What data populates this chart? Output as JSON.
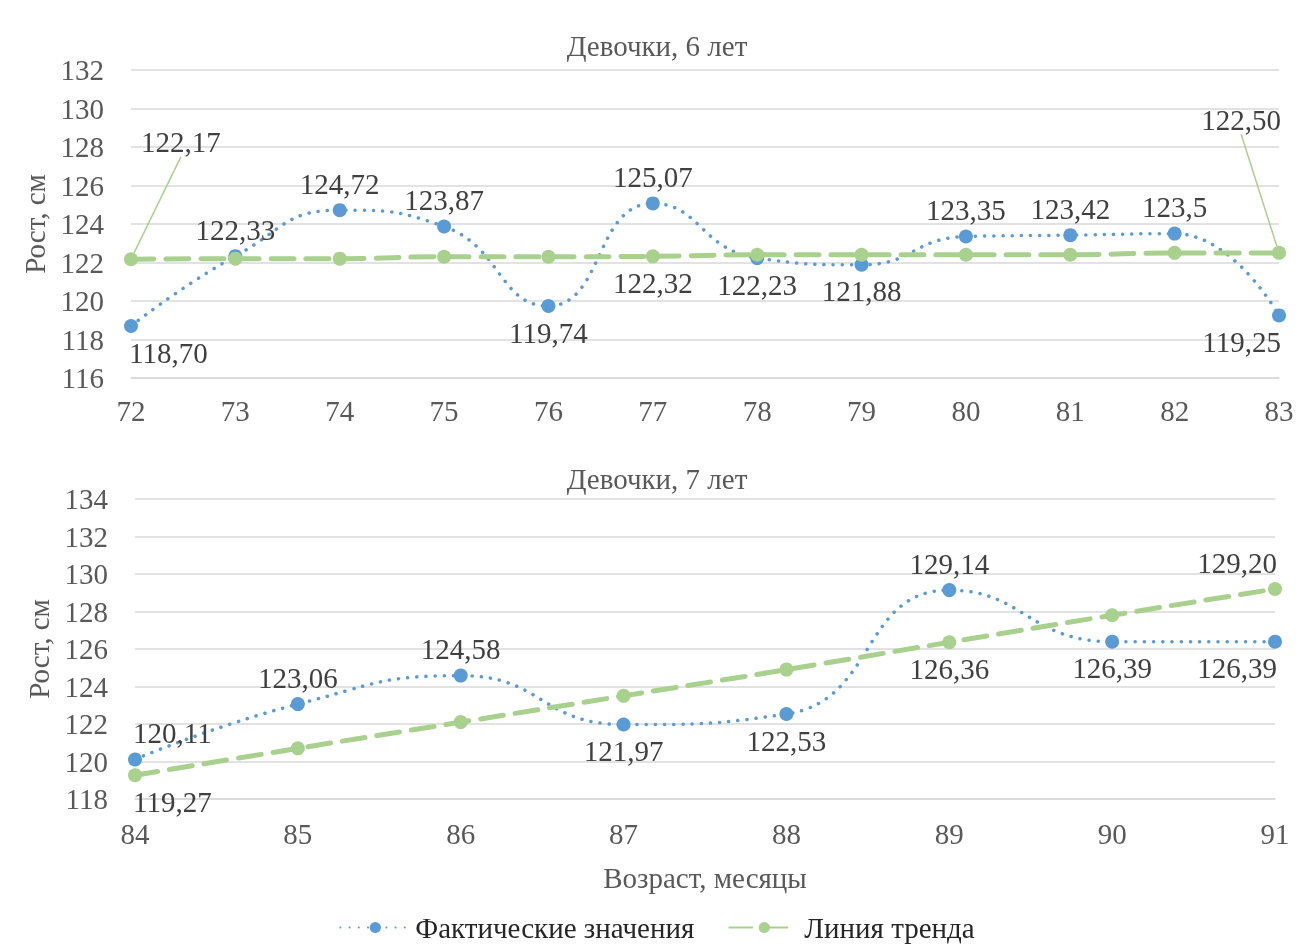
{
  "chart_data": [
    {
      "type": "line",
      "title": "Девочки, 6 лет",
      "ylabel": "Рост, см",
      "x": [
        72,
        73,
        74,
        75,
        76,
        77,
        78,
        79,
        80,
        81,
        82,
        83
      ],
      "xlim": [
        72,
        83
      ],
      "xticks": [
        72,
        73,
        74,
        75,
        76,
        77,
        78,
        79,
        80,
        81,
        82,
        83
      ],
      "ylim": [
        116,
        132
      ],
      "yticks": [
        116,
        118,
        120,
        122,
        124,
        126,
        128,
        130,
        132
      ],
      "grid": "y",
      "legend": false,
      "series": [
        {
          "color": "#5b9bd5",
          "marker": "circle",
          "line_style": "dotted",
          "values": [
            118.7,
            122.33,
            124.72,
            123.87,
            119.74,
            125.07,
            122.23,
            121.88,
            123.35,
            123.42,
            123.5,
            119.25
          ],
          "value_labels": [
            "118,70",
            "122,33",
            "124,72",
            "123,87",
            "119,74",
            "125,07",
            "122,23",
            "121,88",
            "123,35",
            "123,42",
            "123,5",
            "119,25"
          ]
        },
        {
          "color": "#a9d18e",
          "marker": "circle",
          "line_style": "dashed",
          "values": [
            122.17,
            122.2,
            122.2,
            122.3,
            122.3,
            122.32,
            122.4,
            122.4,
            122.4,
            122.4,
            122.5,
            122.5
          ],
          "value_labels": [
            "122,17",
            null,
            null,
            null,
            null,
            "122,32",
            null,
            null,
            null,
            null,
            null,
            "122,50"
          ]
        }
      ]
    },
    {
      "type": "line",
      "title": "Девочки, 7 лет",
      "xlabel": "Возраст, месяцы",
      "ylabel": "Рост, см",
      "x": [
        84,
        85,
        86,
        87,
        88,
        89,
        90,
        91
      ],
      "xlim": [
        84,
        91
      ],
      "xticks": [
        84,
        85,
        86,
        87,
        88,
        89,
        90,
        91
      ],
      "ylim": [
        118,
        134
      ],
      "yticks": [
        118,
        120,
        122,
        124,
        126,
        128,
        130,
        132,
        134
      ],
      "grid": "y",
      "legend": "bottom",
      "series": [
        {
          "name": "Фактические значения",
          "color": "#5b9bd5",
          "marker": "circle",
          "line_style": "dotted",
          "values": [
            120.11,
            123.06,
            124.58,
            121.97,
            122.53,
            129.14,
            126.39,
            126.39
          ],
          "value_labels": [
            "120,11",
            "123,06",
            "124,58",
            "121,97",
            "122,53",
            "129,14",
            "126,39",
            "126,39"
          ]
        },
        {
          "name": "Линия тренда",
          "color": "#a9d18e",
          "marker": "circle",
          "line_style": "dashed",
          "values": [
            119.27,
            120.7,
            122.1,
            123.5,
            124.9,
            126.36,
            127.8,
            129.2
          ],
          "value_labels": [
            "119,27",
            null,
            null,
            null,
            null,
            "126,36",
            null,
            "129,20"
          ]
        }
      ]
    }
  ]
}
